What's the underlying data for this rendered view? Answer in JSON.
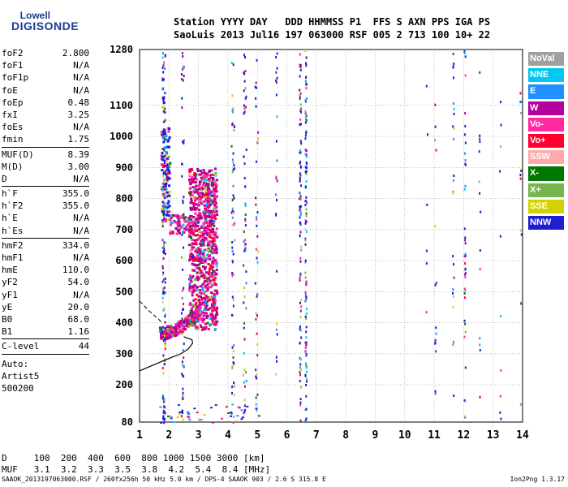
{
  "logo": {
    "line1": "Lowell",
    "line2": "DIGISONDE"
  },
  "header": {
    "labels": "Station YYYY DAY   DDD HHMMSS P1  FFS S AXN PPS IGA PS",
    "values": "SaoLuis 2013 Jul16 197 063000 RSF 005 2 713 100 10+ 22"
  },
  "params": {
    "group1": [
      {
        "name": "foF2",
        "value": "2.800"
      },
      {
        "name": "foF1",
        "value": "N/A"
      },
      {
        "name": "foF1p",
        "value": "N/A"
      },
      {
        "name": "foE",
        "value": "N/A"
      },
      {
        "name": "foEp",
        "value": "0.48"
      },
      {
        "name": "fxI",
        "value": "3.25"
      },
      {
        "name": "foEs",
        "value": "N/A"
      },
      {
        "name": "fmin",
        "value": "1.75"
      }
    ],
    "group2": [
      {
        "name": "MUF(D)",
        "value": "8.39"
      },
      {
        "name": "M(D)",
        "value": "3.00"
      },
      {
        "name": "D",
        "value": "N/A"
      }
    ],
    "group3": [
      {
        "name": "h`F",
        "value": "355.0"
      },
      {
        "name": "h`F2",
        "value": "355.0"
      },
      {
        "name": "h`E",
        "value": "N/A"
      },
      {
        "name": "h`Es",
        "value": "N/A"
      }
    ],
    "group4": [
      {
        "name": "hmF2",
        "value": "334.0"
      },
      {
        "name": "hmF1",
        "value": "N/A"
      },
      {
        "name": "hmE",
        "value": "110.0"
      },
      {
        "name": "yF2",
        "value": "54.0"
      },
      {
        "name": "yF1",
        "value": "N/A"
      },
      {
        "name": "yE",
        "value": "20.0"
      },
      {
        "name": "B0",
        "value": "68.0"
      },
      {
        "name": "B1",
        "value": "1.16"
      }
    ],
    "group5": [
      {
        "name": "C-level",
        "value": "44"
      }
    ],
    "auto": [
      "Auto:",
      "Artist5",
      "500200"
    ]
  },
  "legend": [
    {
      "label": "NoVal",
      "color": "#a0a0a0"
    },
    {
      "label": "NNE",
      "color": "#00c8f0"
    },
    {
      "label": "E",
      "color": "#1e90ff"
    },
    {
      "label": "W",
      "color": "#b4009c"
    },
    {
      "label": "Vo-",
      "color": "#ff2aa0"
    },
    {
      "label": "Vo+",
      "color": "#ff0030"
    },
    {
      "label": "SSW",
      "color": "#ffaaaa"
    },
    {
      "label": "X-",
      "color": "#007800"
    },
    {
      "label": "X+",
      "color": "#78b450"
    },
    {
      "label": "SSE",
      "color": "#d2d200"
    },
    {
      "label": "NNW",
      "color": "#1e1ed2"
    }
  ],
  "dtable": {
    "d_label": "D",
    "d_values": "100  200  400  600  800 1000 1500 3000 [km]",
    "muf_label": "MUF",
    "muf_values": "3.1  3.2  3.3  3.5  3.8  4.2  5.4  8.4 [MHz]"
  },
  "footer": "SAAOK_2013197063000.RSF / 260fx256h 50 kHz 5.0 km / DPS-4 SAAOK 903 / 2.6 S 315.8 E",
  "version": "Ion2Png 1.3.17",
  "chart_data": {
    "type": "scatter",
    "x_ticks": [
      1,
      2,
      3,
      4,
      5,
      6,
      7,
      8,
      9,
      10,
      11,
      12,
      13,
      14
    ],
    "y_ticks": [
      80,
      200,
      300,
      400,
      500,
      600,
      700,
      800,
      900,
      1000,
      1100,
      1280
    ],
    "xlim": [
      1,
      14
    ],
    "ylim": [
      80,
      1280
    ],
    "grid": true,
    "legend_position": "right",
    "traces": [
      {
        "name": "F2 trace",
        "points": [
          [
            1.75,
            355
          ],
          [
            2.0,
            360
          ],
          [
            2.3,
            370
          ],
          [
            2.6,
            390
          ],
          [
            2.8,
            420
          ],
          [
            2.9,
            470
          ],
          [
            3.0,
            530
          ],
          [
            3.1,
            600
          ],
          [
            3.2,
            680
          ],
          [
            3.3,
            760
          ],
          [
            3.4,
            840
          ],
          [
            3.5,
            880
          ]
        ]
      },
      {
        "name": "E-region trace",
        "points": [
          [
            1.7,
            720
          ],
          [
            1.8,
            900
          ],
          [
            1.9,
            1000
          ],
          [
            2.0,
            950
          ],
          [
            2.1,
            750
          ],
          [
            2.3,
            700
          ],
          [
            2.6,
            720
          ],
          [
            2.8,
            760
          ]
        ]
      }
    ],
    "profile_curve": [
      [
        1.0,
        245
      ],
      [
        1.5,
        265
      ],
      [
        2.0,
        285
      ],
      [
        2.4,
        300
      ],
      [
        2.65,
        315
      ],
      [
        2.8,
        334
      ],
      [
        2.78,
        345
      ],
      [
        2.5,
        355
      ]
    ],
    "dashed_curve": [
      [
        1.0,
        470
      ],
      [
        1.3,
        440
      ],
      [
        1.6,
        415
      ],
      [
        1.8,
        398
      ]
    ]
  }
}
